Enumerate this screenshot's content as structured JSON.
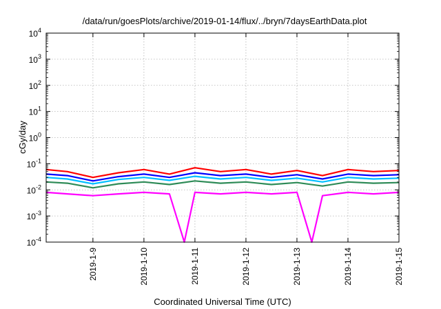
{
  "chart_data": {
    "type": "line",
    "title": "/data/run/goesPlots/archive/2019-01-14/flux/../bryn/7daysEarthData.plot",
    "xlabel": "Coordinated Universal Time (UTC)",
    "ylabel": "cGy/day",
    "yscale": "log",
    "ylim": [
      0.0001,
      10000
    ],
    "xlim": [
      "2019-01-08 02:00",
      "2019-01-15 00:00"
    ],
    "grid": true,
    "x_ticks": [
      "2019-1-9",
      "2019-1-10",
      "2019-1-11",
      "2019-1-12",
      "2019-1-13",
      "2019-1-14",
      "2019-1-15"
    ],
    "y_ticks": [
      {
        "base": "10",
        "exp": "-4"
      },
      {
        "base": "10",
        "exp": "-3"
      },
      {
        "base": "10",
        "exp": "-2"
      },
      {
        "base": "10",
        "exp": "-1"
      },
      {
        "base": "10",
        "exp": "0"
      },
      {
        "base": "10",
        "exp": "1"
      },
      {
        "base": "10",
        "exp": "2"
      },
      {
        "base": "10",
        "exp": "3"
      },
      {
        "base": "10",
        "exp": "4"
      }
    ],
    "series": [
      {
        "color": "#ff0000",
        "x": [
          "2019-01-08 02:00",
          "2019-01-08 12:00",
          "2019-01-09 00:00",
          "2019-01-09 12:00",
          "2019-01-10 00:00",
          "2019-01-10 12:00",
          "2019-01-11 00:00",
          "2019-01-11 12:00",
          "2019-01-12 00:00",
          "2019-01-12 12:00",
          "2019-01-13 00:00",
          "2019-01-13 12:00",
          "2019-01-14 00:00",
          "2019-01-14 12:00",
          "2019-01-15 00:00"
        ],
        "values": [
          0.06,
          0.05,
          0.03,
          0.045,
          0.06,
          0.04,
          0.07,
          0.05,
          0.06,
          0.04,
          0.055,
          0.035,
          0.06,
          0.05,
          0.055
        ]
      },
      {
        "color": "#0000ff",
        "x": [
          "2019-01-08 02:00",
          "2019-01-08 12:00",
          "2019-01-09 00:00",
          "2019-01-09 12:00",
          "2019-01-10 00:00",
          "2019-01-10 12:00",
          "2019-01-11 00:00",
          "2019-01-11 12:00",
          "2019-01-12 00:00",
          "2019-01-12 12:00",
          "2019-01-13 00:00",
          "2019-01-13 12:00",
          "2019-01-14 00:00",
          "2019-01-14 12:00",
          "2019-01-15 00:00"
        ],
        "values": [
          0.04,
          0.035,
          0.022,
          0.032,
          0.04,
          0.03,
          0.045,
          0.035,
          0.04,
          0.03,
          0.038,
          0.026,
          0.04,
          0.035,
          0.038
        ]
      },
      {
        "color": "#00bfff",
        "x": [
          "2019-01-08 02:00",
          "2019-01-08 12:00",
          "2019-01-09 00:00",
          "2019-01-09 12:00",
          "2019-01-10 00:00",
          "2019-01-10 12:00",
          "2019-01-11 00:00",
          "2019-01-11 12:00",
          "2019-01-12 00:00",
          "2019-01-12 12:00",
          "2019-01-13 00:00",
          "2019-01-13 12:00",
          "2019-01-14 00:00",
          "2019-01-14 12:00",
          "2019-01-15 00:00"
        ],
        "values": [
          0.03,
          0.026,
          0.017,
          0.025,
          0.03,
          0.023,
          0.033,
          0.026,
          0.03,
          0.023,
          0.028,
          0.02,
          0.03,
          0.026,
          0.028
        ]
      },
      {
        "color": "#2e8b57",
        "x": [
          "2019-01-08 02:00",
          "2019-01-08 12:00",
          "2019-01-09 00:00",
          "2019-01-09 12:00",
          "2019-01-10 00:00",
          "2019-01-10 12:00",
          "2019-01-11 00:00",
          "2019-01-11 12:00",
          "2019-01-12 00:00",
          "2019-01-12 12:00",
          "2019-01-13 00:00",
          "2019-01-13 12:00",
          "2019-01-14 00:00",
          "2019-01-14 12:00",
          "2019-01-15 00:00"
        ],
        "values": [
          0.02,
          0.018,
          0.012,
          0.017,
          0.02,
          0.016,
          0.022,
          0.018,
          0.02,
          0.016,
          0.019,
          0.014,
          0.02,
          0.018,
          0.019
        ]
      },
      {
        "color": "#ff00ff",
        "x": [
          "2019-01-08 02:00",
          "2019-01-08 12:00",
          "2019-01-09 00:00",
          "2019-01-09 12:00",
          "2019-01-10 00:00",
          "2019-01-10 12:00",
          "2019-01-10 19:00",
          "2019-01-11 00:00",
          "2019-01-11 12:00",
          "2019-01-12 00:00",
          "2019-01-12 12:00",
          "2019-01-13 00:00",
          "2019-01-13 07:00",
          "2019-01-13 12:00",
          "2019-01-14 00:00",
          "2019-01-14 12:00",
          "2019-01-15 00:00"
        ],
        "values": [
          0.008,
          0.007,
          0.006,
          0.007,
          0.008,
          0.007,
          0.0001,
          0.008,
          0.007,
          0.008,
          0.007,
          0.008,
          0.0001,
          0.006,
          0.008,
          0.007,
          0.008
        ]
      }
    ]
  }
}
